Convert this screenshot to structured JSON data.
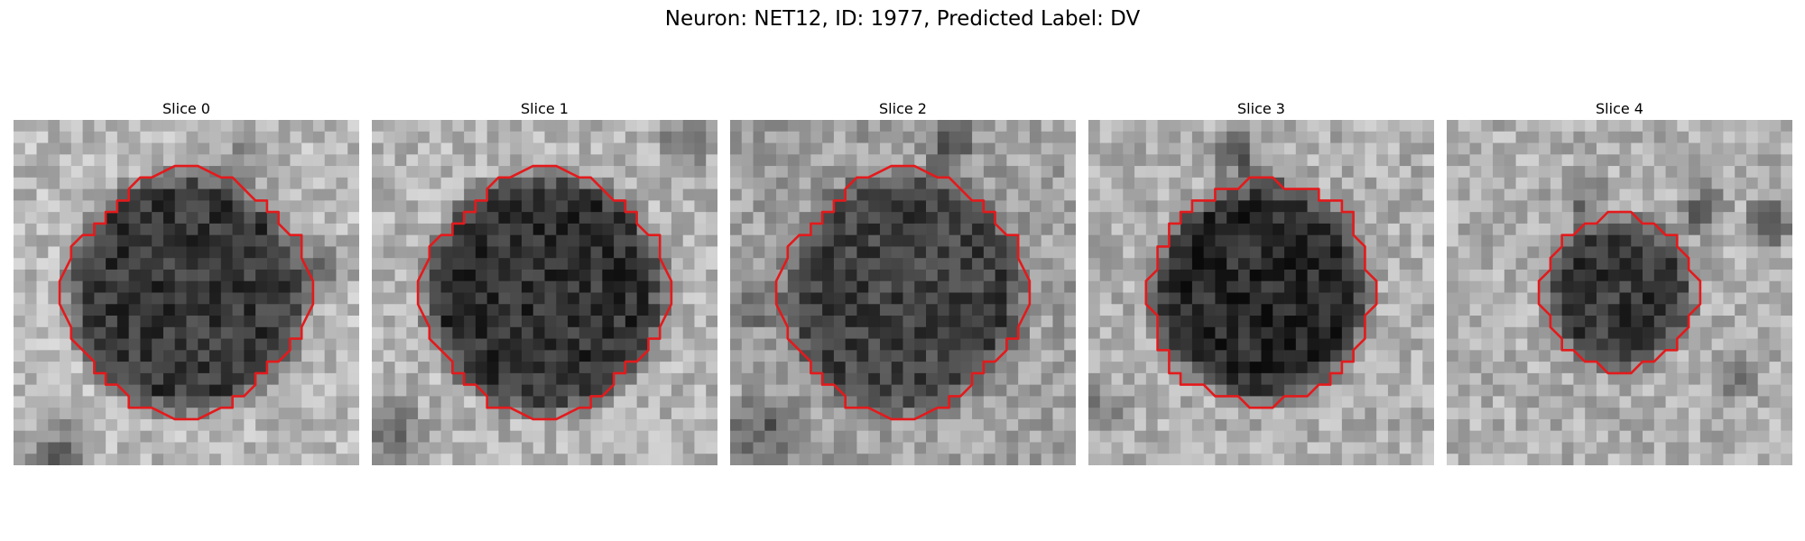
{
  "figure": {
    "title": "Neuron: NET12, ID: 1977, Predicted Label: DV"
  },
  "panels": [
    {
      "title": "Slice 0"
    },
    {
      "title": "Slice 1"
    },
    {
      "title": "Slice 2"
    },
    {
      "title": "Slice 3"
    },
    {
      "title": "Slice 4"
    }
  ],
  "colors": {
    "contour": "#e31a1c",
    "background": "#ffffff"
  }
}
